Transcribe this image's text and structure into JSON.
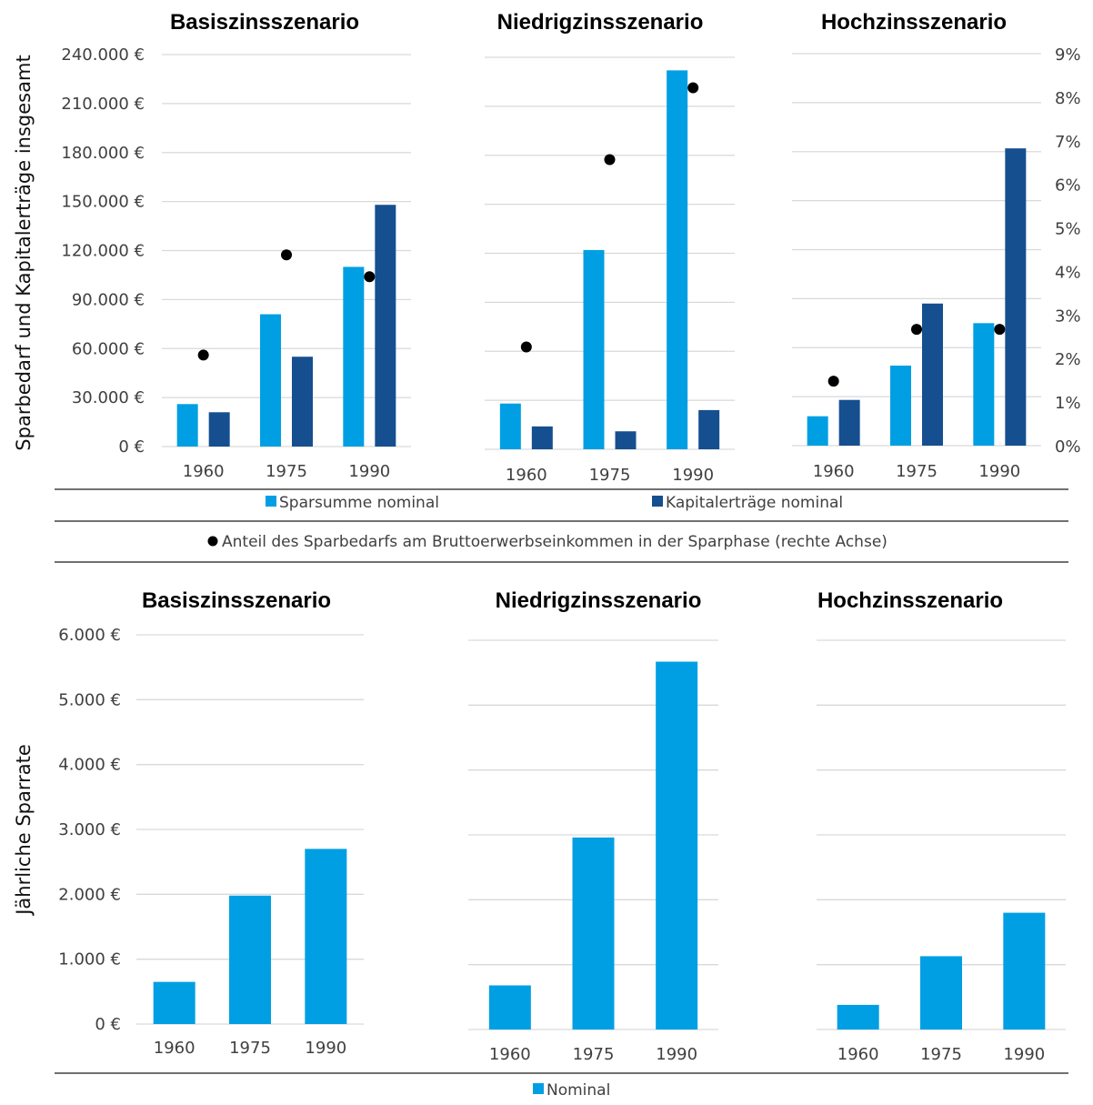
{
  "colors": {
    "light": "#009fe3",
    "dark": "#164f8f",
    "dot": "#000000",
    "grid": "#d9d9d9"
  },
  "top": {
    "ylabel": "Sparbedarf und Kapitalerträge insgesamt",
    "yticks": [
      "0 €",
      "30.000 €",
      "60.000 €",
      "90.000 €",
      "120.000 €",
      "150.000 €",
      "180.000 €",
      "210.000 €",
      "240.000 €"
    ],
    "y2ticks": [
      "0%",
      "1%",
      "2%",
      "3%",
      "4%",
      "5%",
      "6%",
      "7%",
      "8%",
      "9%"
    ],
    "legend": {
      "series1": "Sparsumme nominal",
      "series2": "Kapitalerträge nominal",
      "series3": "Anteil des Sparbedarfs am Bruttoerwerbseinkommen in der Sparphase (rechte Achse)"
    }
  },
  "bottom": {
    "ylabel": "Jährliche Sparrate",
    "yticks": [
      "0 €",
      "1.000 €",
      "2.000 €",
      "3.000 €",
      "4.000 €",
      "5.000 €",
      "6.000 €"
    ],
    "legend": {
      "series1": "Nominal"
    }
  },
  "chart_data": [
    {
      "type": "bar",
      "title": "Basiszinsszenario",
      "categories": [
        "1960",
        "1975",
        "1990"
      ],
      "ylabel": "Sparbedarf und Kapitalerträge insgesamt",
      "ylim": [
        0,
        240000
      ],
      "y2lim": [
        0,
        0.09
      ],
      "series": [
        {
          "name": "Sparsumme nominal",
          "values": [
            26000,
            81000,
            110000
          ]
        },
        {
          "name": "Kapitalerträge nominal",
          "values": [
            21000,
            55000,
            148000
          ]
        },
        {
          "name": "Anteil des Sparbedarfs am Bruttoerwerbseinkommen in der Sparphase (rechte Achse)",
          "type": "scatter",
          "axis": "right",
          "values": [
            0.021,
            0.044,
            0.039
          ]
        }
      ]
    },
    {
      "type": "bar",
      "title": "Niedrigzinsszenario",
      "categories": [
        "1960",
        "1975",
        "1990"
      ],
      "ylim": [
        0,
        240000
      ],
      "y2lim": [
        0,
        0.09
      ],
      "series": [
        {
          "name": "Sparsumme nominal",
          "values": [
            28000,
            122000,
            232000
          ]
        },
        {
          "name": "Kapitalerträge nominal",
          "values": [
            14000,
            11000,
            24000
          ]
        },
        {
          "name": "Anteil des Sparbedarfs am Bruttoerwerbseinkommen in der Sparphase (rechte Achse)",
          "type": "scatter",
          "axis": "right",
          "values": [
            0.0235,
            0.0665,
            0.083
          ]
        }
      ]
    },
    {
      "type": "bar",
      "title": "Hochzinsszenario",
      "categories": [
        "1960",
        "1975",
        "1990"
      ],
      "ylim": [
        0,
        240000
      ],
      "y2lim": [
        0,
        0.09
      ],
      "series": [
        {
          "name": "Sparsumme nominal",
          "values": [
            18000,
            49000,
            75000
          ]
        },
        {
          "name": "Kapitalerträge nominal",
          "values": [
            28000,
            87000,
            182000
          ]
        },
        {
          "name": "Anteil des Sparbedarfs am Bruttoerwerbseinkommen in der Sparphase (rechte Achse)",
          "type": "scatter",
          "axis": "right",
          "values": [
            0.0148,
            0.0267,
            0.0267
          ]
        }
      ]
    },
    {
      "type": "bar",
      "title": "Basiszinsszenario",
      "categories": [
        "1960",
        "1975",
        "1990"
      ],
      "ylabel": "Jährliche Sparrate",
      "ylim": [
        0,
        6000
      ],
      "series": [
        {
          "name": "Nominal",
          "values": [
            650,
            1980,
            2700
          ]
        }
      ]
    },
    {
      "type": "bar",
      "title": "Niedrigzinsszenario",
      "categories": [
        "1960",
        "1975",
        "1990"
      ],
      "ylim": [
        0,
        6000
      ],
      "series": [
        {
          "name": "Nominal",
          "values": [
            680,
            2960,
            5670
          ]
        }
      ]
    },
    {
      "type": "bar",
      "title": "Hochzinsszenario",
      "categories": [
        "1960",
        "1975",
        "1990"
      ],
      "ylim": [
        0,
        6000
      ],
      "series": [
        {
          "name": "Nominal",
          "values": [
            380,
            1130,
            1800
          ]
        }
      ]
    }
  ]
}
